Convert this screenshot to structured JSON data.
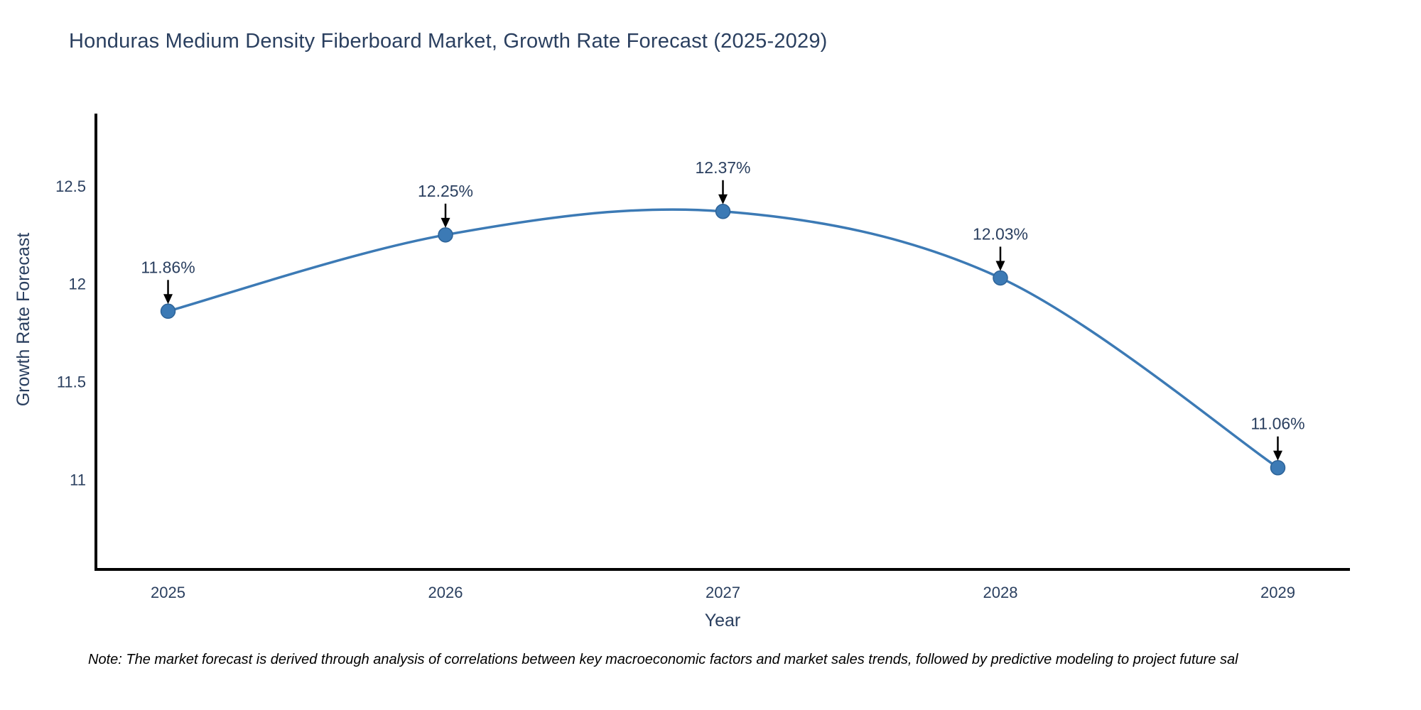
{
  "note": "Note: The market forecast is derived through analysis of correlations between key macroeconomic factors and market sales trends, followed by predictive modeling to project future sal",
  "chart_data": {
    "type": "line",
    "title": "Honduras Medium Density Fiberboard Market, Growth Rate Forecast (2025-2029)",
    "xlabel": "Year",
    "ylabel": "Growth Rate Forecast",
    "x": [
      2025,
      2026,
      2027,
      2028,
      2029
    ],
    "x_tick_labels": [
      "2025",
      "2026",
      "2027",
      "2028",
      "2029"
    ],
    "series": [
      {
        "name": "Growth Rate Forecast",
        "values": [
          11.86,
          12.25,
          12.37,
          12.03,
          11.06
        ]
      }
    ],
    "point_labels": [
      "11.86%",
      "12.25%",
      "12.37%",
      "12.03%",
      "11.06%"
    ],
    "y_tick_values": [
      11,
      11.5,
      12,
      12.5
    ],
    "y_tick_labels": [
      "11",
      "11.5",
      "12",
      "12.5"
    ],
    "xlim": [
      2024.74,
      2029.26
    ],
    "ylim": [
      10.54,
      12.87
    ],
    "line_shape": "spline",
    "grid": false,
    "legend": "none",
    "colors": {
      "line": "#3c7ab5",
      "marker_fill": "#3c7ab5",
      "marker_edge": "#2d6398",
      "axis": "#000000",
      "tick_text": "#2a3f5f",
      "title_text": "#2a3f5f",
      "axis_label_text": "#2a3f5f",
      "annotation_text": "#2a3f5f",
      "arrow": "#000000",
      "note_text": "#000000",
      "background": "#ffffff"
    }
  }
}
